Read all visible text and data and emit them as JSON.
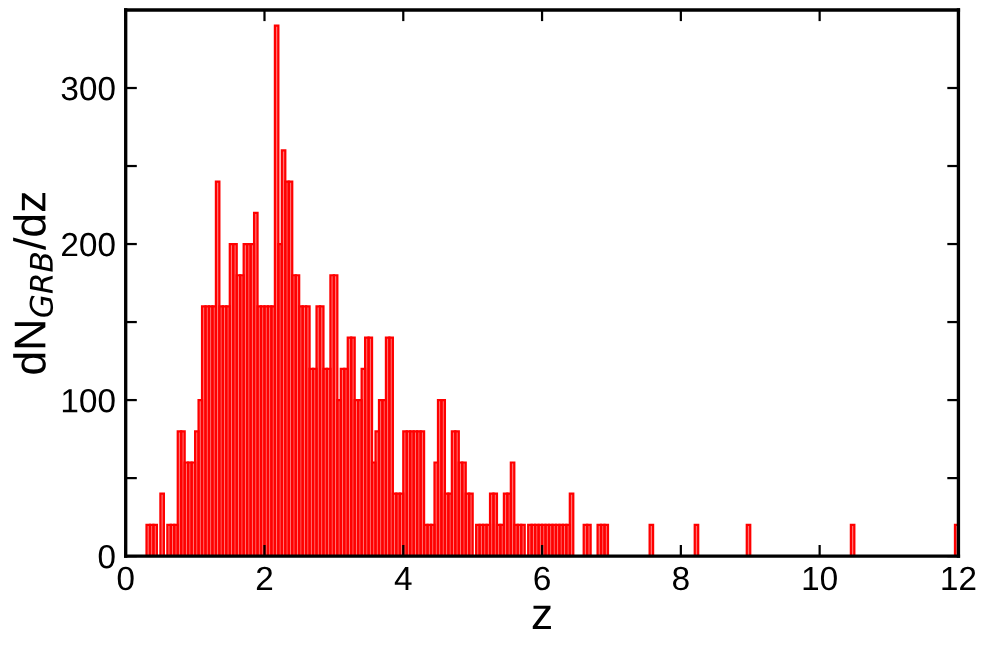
{
  "chart_data": {
    "type": "histogram",
    "xlabel": "z",
    "ylabel": "dN$_{GRB}$/dz",
    "color": "#ff0000",
    "bins": [
      0.3,
      0.35,
      0.4,
      0.45,
      0.5,
      0.55,
      0.6,
      0.65,
      0.7,
      0.75,
      0.8,
      0.85,
      0.9,
      0.95,
      1.0,
      1.05,
      1.1,
      1.15,
      1.2,
      1.25,
      1.3,
      1.35,
      1.4,
      1.45,
      1.5,
      1.55,
      1.6,
      1.65,
      1.7,
      1.75,
      1.8,
      1.85,
      1.9,
      1.95,
      2.0,
      2.05,
      2.1,
      2.15,
      2.2,
      2.25,
      2.3,
      2.35,
      2.4,
      2.45,
      2.5,
      2.55,
      2.6,
      2.65,
      2.7,
      2.75,
      2.8,
      2.85,
      2.9,
      2.95,
      3.0,
      3.05,
      3.1,
      3.15,
      3.2,
      3.25,
      3.3,
      3.35,
      3.4,
      3.45,
      3.5,
      3.55,
      3.6,
      3.65,
      3.7,
      3.75,
      3.8,
      3.85,
      3.9,
      3.95,
      4.0,
      4.05,
      4.1,
      4.15,
      4.2,
      4.25,
      4.3,
      4.35,
      4.4,
      4.45,
      4.5,
      4.55,
      4.6,
      4.65,
      4.7,
      4.75,
      4.8,
      4.85,
      4.9,
      4.95,
      5.0,
      5.05,
      5.1,
      5.15,
      5.2,
      5.25,
      5.3,
      5.35,
      5.4,
      5.45,
      5.5,
      5.55,
      5.6,
      5.65,
      5.7,
      5.75,
      5.8,
      5.85,
      5.9,
      5.95,
      6.0,
      6.05,
      6.1,
      6.15,
      6.2,
      6.25,
      6.3,
      6.35,
      6.4,
      6.45,
      6.5,
      6.55,
      6.6,
      6.65,
      6.7,
      6.75,
      6.8,
      6.85,
      6.9,
      6.95,
      7.55,
      7.6,
      8.2,
      8.25,
      8.95,
      9.0,
      10.45,
      10.5,
      11.95,
      12.0
    ],
    "values": [
      20,
      20,
      20,
      0,
      40,
      0,
      20,
      20,
      20,
      80,
      80,
      60,
      60,
      60,
      80,
      100,
      160,
      160,
      160,
      160,
      240,
      160,
      160,
      160,
      200,
      200,
      180,
      180,
      200,
      200,
      200,
      220,
      160,
      160,
      160,
      160,
      160,
      340,
      200,
      260,
      240,
      240,
      180,
      180,
      160,
      160,
      160,
      120,
      120,
      160,
      160,
      120,
      120,
      180,
      180,
      100,
      120,
      120,
      140,
      140,
      100,
      100,
      120,
      140,
      140,
      60,
      80,
      100,
      100,
      140,
      140,
      40,
      40,
      40,
      80,
      80,
      80,
      80,
      80,
      80,
      20,
      20,
      20,
      60,
      100,
      100,
      40,
      40,
      80,
      80,
      60,
      60,
      40,
      40,
      0,
      20,
      20,
      20,
      20,
      40,
      40,
      20,
      20,
      40,
      40,
      60,
      20,
      20,
      20,
      0,
      20,
      20,
      20,
      20,
      20,
      20,
      20,
      20,
      20,
      20,
      20,
      20,
      40,
      0,
      0,
      0,
      20,
      20,
      0,
      0,
      20,
      20,
      20,
      0,
      20,
      0,
      20,
      0,
      20,
      0,
      20,
      0,
      20
    ],
    "xlim": [
      0,
      12
    ],
    "xticks": [
      0,
      2,
      4,
      6,
      8,
      10,
      12
    ],
    "ylim": [
      0,
      350
    ],
    "yticks": [
      0,
      {
        "value": 50,
        "label": null
      },
      100,
      {
        "value": 150,
        "label": null
      },
      200,
      {
        "value": 250,
        "label": null
      },
      300
    ],
    "grid": false
  }
}
